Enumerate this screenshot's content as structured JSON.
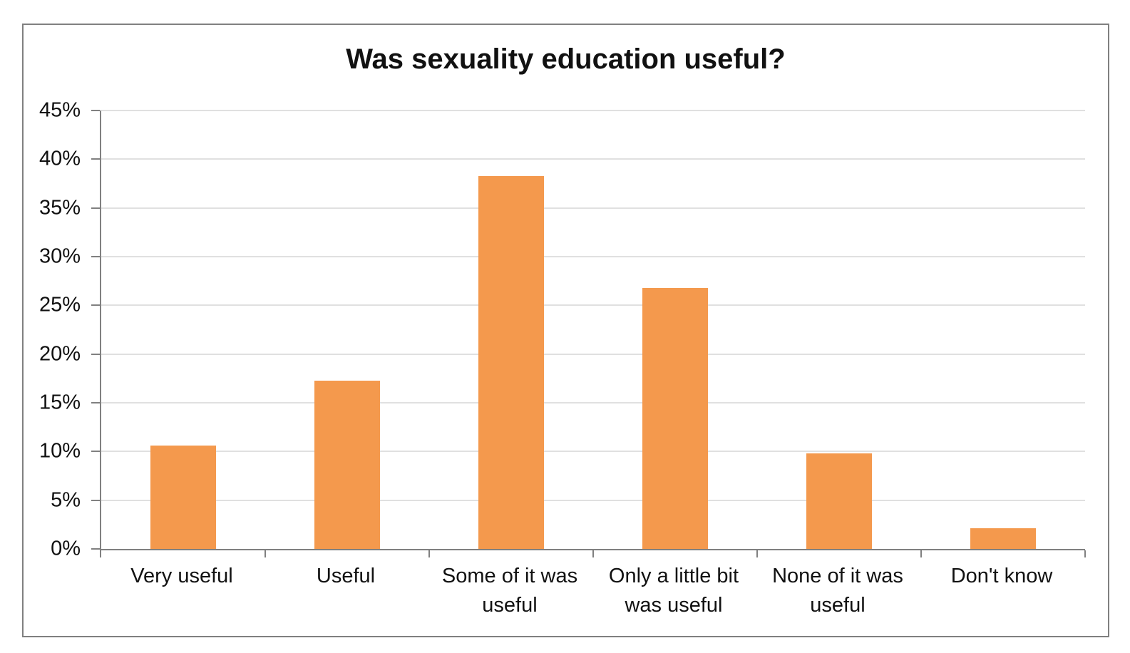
{
  "chart_data": {
    "type": "bar",
    "title": "Was sexuality education useful?",
    "categories": [
      "Very useful",
      "Useful",
      "Some of it was useful",
      "Only a little bit was useful",
      "None of it was useful",
      "Don't know"
    ],
    "values": [
      10.6,
      17.3,
      38.3,
      26.8,
      9.8,
      2.1
    ],
    "xlabel": "",
    "ylabel": "",
    "ylim": [
      0,
      45
    ],
    "ytick_step": 5,
    "ytick_labels": [
      "0%",
      "5%",
      "10%",
      "15%",
      "20%",
      "25%",
      "30%",
      "35%",
      "40%",
      "45%"
    ],
    "grid": true,
    "legend_position": "none",
    "bar_color": "#F4994D"
  },
  "colors": {
    "bar": "#F4994D",
    "gridline": "#E0E0E0",
    "axis": "#808080",
    "frame_border": "#808080",
    "text": "#111111",
    "background": "#FFFFFF"
  }
}
